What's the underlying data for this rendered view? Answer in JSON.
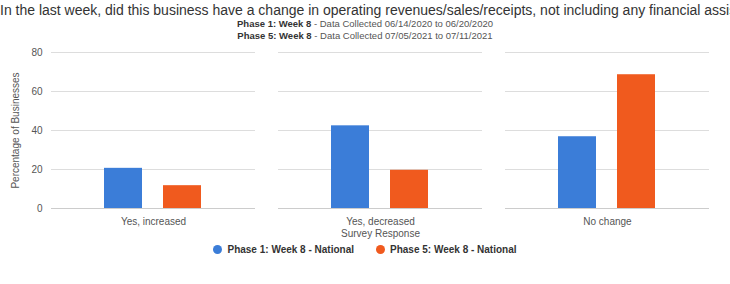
{
  "chart_data": {
    "type": "bar",
    "title": "In the last week, did this business have a change in operating revenues/sales/receipts, not including any financial assistance or loans?",
    "subtitle": [
      "Phase 1: Week 8 - Data Collected 06/14/2020 to 06/20/2020",
      "Phase 5: Week 8 - Data Collected 07/05/2021 to 07/11/2021"
    ],
    "x_label": "Survey Response",
    "y_label": "Percentage of Businesses",
    "categories": [
      "Yes, increased",
      "Yes, decreased",
      "No change"
    ],
    "series": [
      {
        "name": "Phase 1: Week 8 - National",
        "color": "#3b7dd8",
        "values": [
          20.6,
          42.4,
          36.8
        ]
      },
      {
        "name": "Phase 5: Week 8 - National",
        "color": "#f05a1e",
        "values": [
          11.7,
          19.6,
          68.6
        ]
      }
    ],
    "ylim": [
      0,
      80
    ],
    "yticks": [
      0,
      20,
      40,
      60,
      80
    ],
    "grid": true,
    "legend": "bottom"
  }
}
